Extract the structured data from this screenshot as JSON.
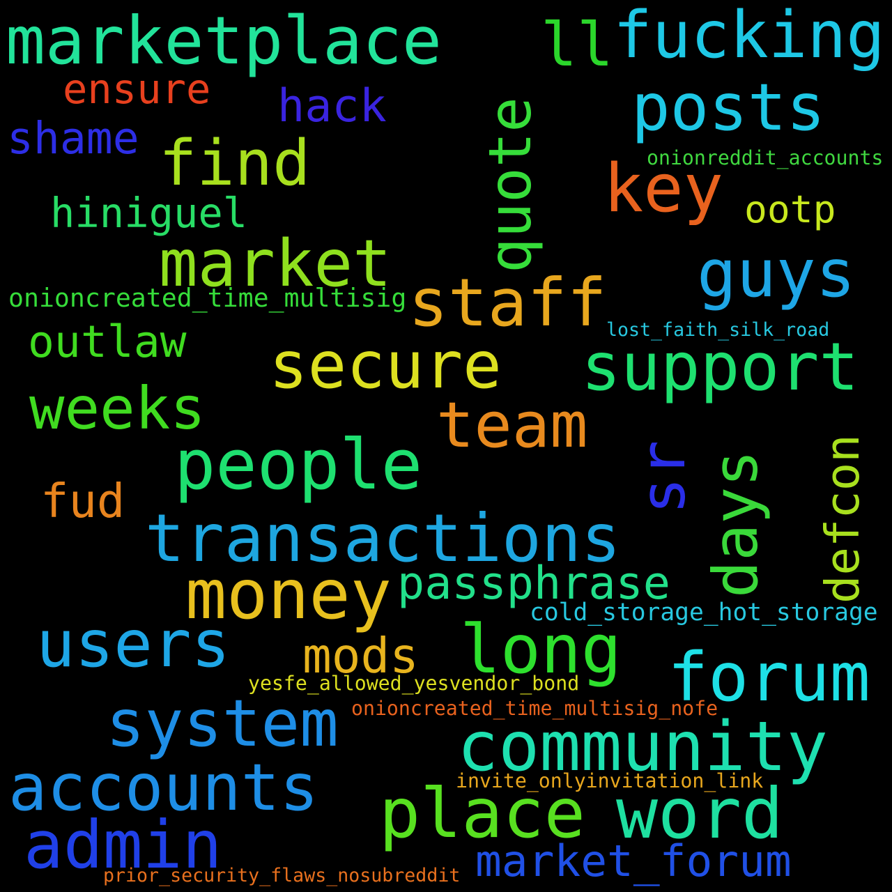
{
  "words": [
    {
      "text": "marketplace",
      "color": "#22e39a",
      "rotate": false
    },
    {
      "text": "ll",
      "color": "#2bd62b",
      "rotate": false
    },
    {
      "text": "fucking",
      "color": "#1ec8e6",
      "rotate": false
    },
    {
      "text": "posts",
      "color": "#1ec8e6",
      "rotate": false
    },
    {
      "text": "ensure",
      "color": "#e8401e",
      "rotate": false
    },
    {
      "text": "hack",
      "color": "#3a24e0",
      "rotate": false
    },
    {
      "text": "shame",
      "color": "#2d2ee6",
      "rotate": false
    },
    {
      "text": "find",
      "color": "#a8e01e",
      "rotate": false
    },
    {
      "text": "quote",
      "color": "#36dd3a",
      "rotate": true
    },
    {
      "text": "key",
      "color": "#e8621e",
      "rotate": false
    },
    {
      "text": "onionreddit_accounts",
      "color": "#40d840",
      "rotate": false
    },
    {
      "text": "hiniguel",
      "color": "#28dd66",
      "rotate": false
    },
    {
      "text": "ootp",
      "color": "#c8e81e",
      "rotate": false
    },
    {
      "text": "market",
      "color": "#8fe01e",
      "rotate": false
    },
    {
      "text": "guys",
      "color": "#1ea6e6",
      "rotate": false
    },
    {
      "text": "staff",
      "color": "#e8a71e",
      "rotate": false
    },
    {
      "text": "onioncreated_time_multisig",
      "color": "#36dd3a",
      "rotate": false
    },
    {
      "text": "lost_faith_silk_road",
      "color": "#28c8e0",
      "rotate": false
    },
    {
      "text": "outlaw",
      "color": "#40dc20",
      "rotate": false
    },
    {
      "text": "secure",
      "color": "#dde020",
      "rotate": false
    },
    {
      "text": "support",
      "color": "#1ee070",
      "rotate": false
    },
    {
      "text": "weeks",
      "color": "#40dc20",
      "rotate": false
    },
    {
      "text": "team",
      "color": "#e88a1e",
      "rotate": false
    },
    {
      "text": "people",
      "color": "#1ee070",
      "rotate": false
    },
    {
      "text": "sr",
      "color": "#2a2ee8",
      "rotate": true
    },
    {
      "text": "days",
      "color": "#3ad93a",
      "rotate": true
    },
    {
      "text": "defcon",
      "color": "#a8e01e",
      "rotate": true
    },
    {
      "text": "fud",
      "color": "#e8841e",
      "rotate": false
    },
    {
      "text": "transactions",
      "color": "#1ea6e0",
      "rotate": false
    },
    {
      "text": "money",
      "color": "#e8c01e",
      "rotate": false
    },
    {
      "text": "passphrase",
      "color": "#22e08a",
      "rotate": false
    },
    {
      "text": "cold_storage_hot_storage",
      "color": "#28c8e0",
      "rotate": false
    },
    {
      "text": "users",
      "color": "#1ea6e6",
      "rotate": false
    },
    {
      "text": "mods",
      "color": "#e8b41e",
      "rotate": false
    },
    {
      "text": "long",
      "color": "#2ee02e",
      "rotate": false
    },
    {
      "text": "forum",
      "color": "#1ee0e6",
      "rotate": false
    },
    {
      "text": "yesfe_allowed_yesvendor_bond",
      "color": "#dde020",
      "rotate": false
    },
    {
      "text": "system",
      "color": "#1e8ee6",
      "rotate": false
    },
    {
      "text": "onioncreated_time_multisig_nofe",
      "color": "#e8621e",
      "rotate": false
    },
    {
      "text": "community",
      "color": "#1ee0b0",
      "rotate": false
    },
    {
      "text": "accounts",
      "color": "#1e8ee6",
      "rotate": false
    },
    {
      "text": "invite_onlyinvitation_link",
      "color": "#e8a71e",
      "rotate": false
    },
    {
      "text": "place",
      "color": "#58e020",
      "rotate": false
    },
    {
      "text": "word",
      "color": "#1ee0a0",
      "rotate": false
    },
    {
      "text": "admin",
      "color": "#2040e8",
      "rotate": false
    },
    {
      "text": "market_forum",
      "color": "#2050e6",
      "rotate": false
    },
    {
      "text": "prior_security_flaws_nosubreddit",
      "color": "#e8701e",
      "rotate": false
    }
  ]
}
